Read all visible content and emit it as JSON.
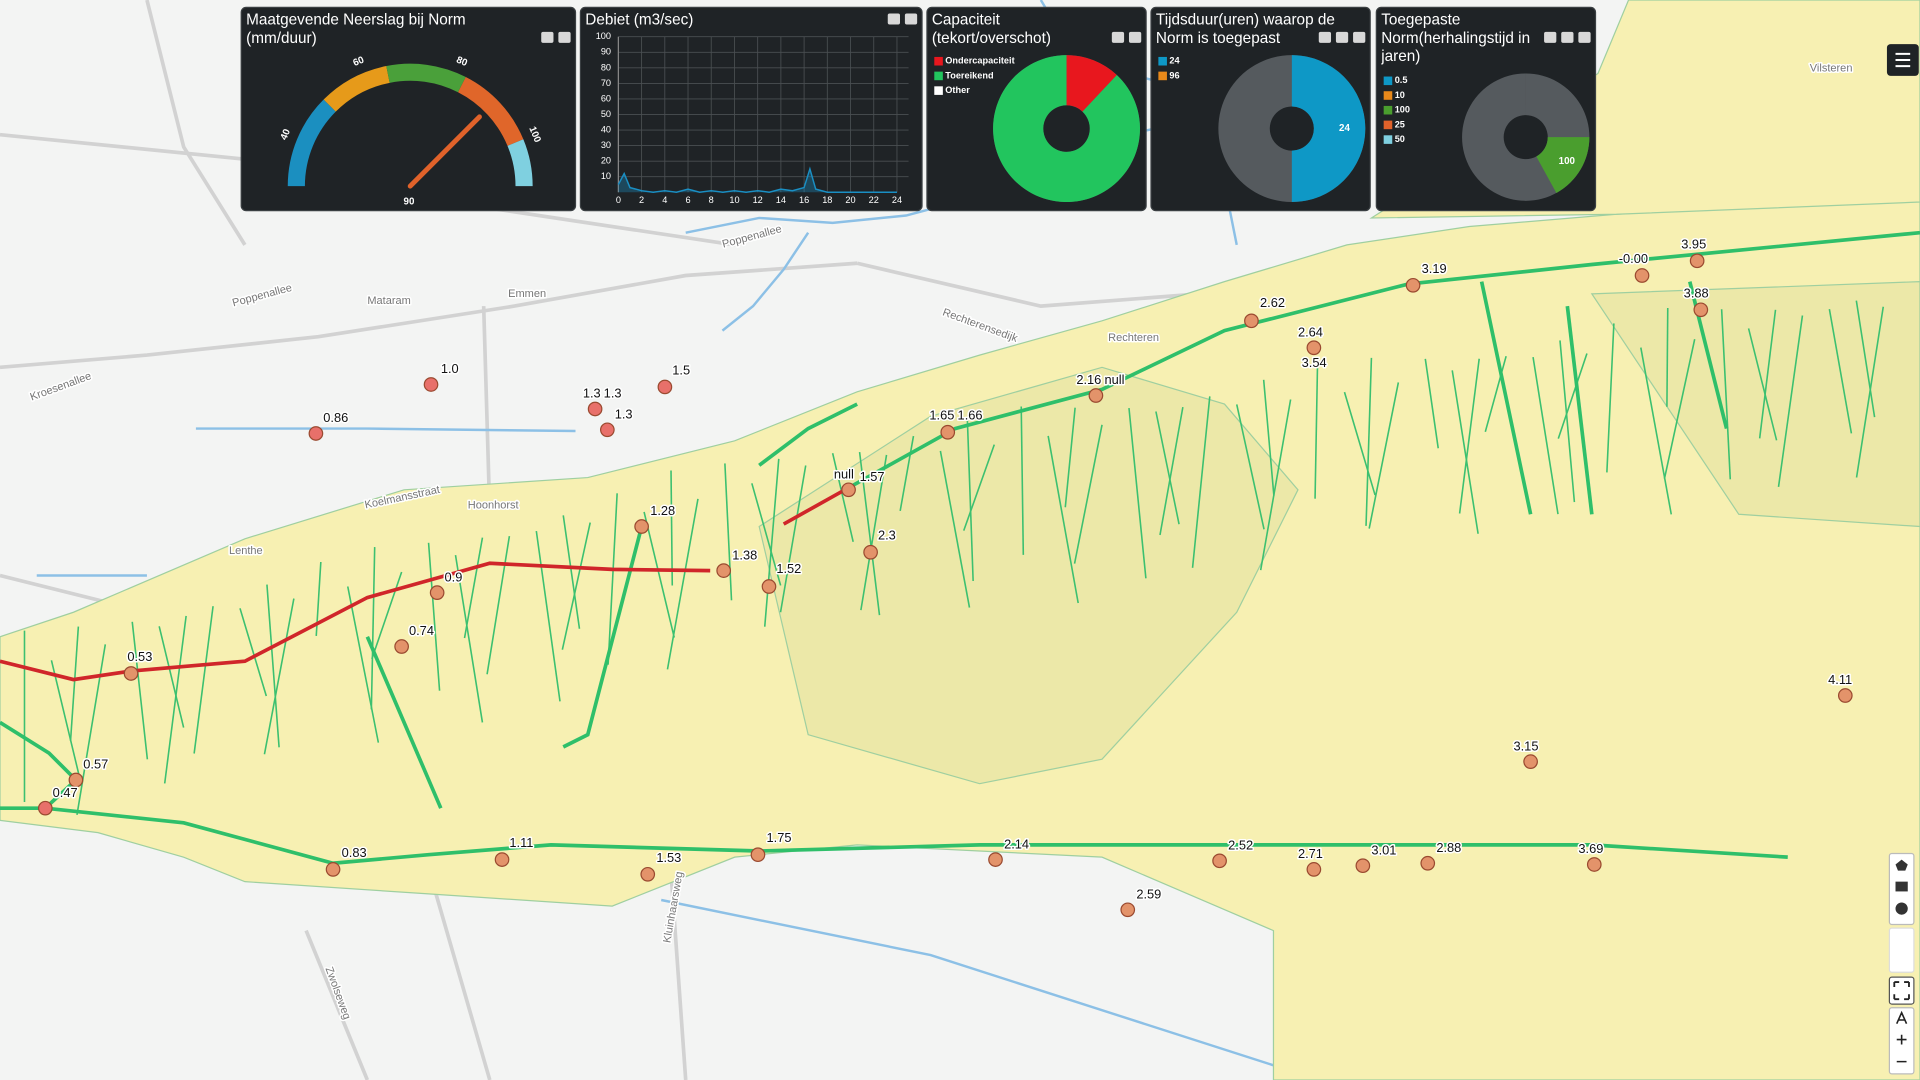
{
  "chart_data": [
    {
      "type": "gauge",
      "title": "Maatgevende Neerslag bij Norm (mm/duur)",
      "value": 90,
      "ylim": [
        30,
        110
      ],
      "yticks": [
        40,
        60,
        80,
        100
      ],
      "bands": [
        {
          "from": 30,
          "to": 50,
          "color": "#1b8fc0"
        },
        {
          "from": 50,
          "to": 65,
          "color": "#e69a1a"
        },
        {
          "from": 65,
          "to": 82,
          "color": "#4aa03a"
        },
        {
          "from": 82,
          "to": 100,
          "color": "#e0662a"
        },
        {
          "from": 100,
          "to": 110,
          "color": "#7fd0e0"
        }
      ],
      "needle_color": "#e0622a"
    },
    {
      "type": "line",
      "title": "Debiet (m3/sec)",
      "x": [
        0,
        0.5,
        1,
        2,
        3,
        4,
        5,
        6,
        7,
        8,
        9,
        10,
        11,
        12,
        13,
        14,
        15,
        16,
        16.5,
        17,
        18,
        19,
        20,
        21,
        22,
        23,
        24
      ],
      "series": [
        {
          "color": "#1a8fc4",
          "values": [
            5,
            12,
            3,
            1,
            0,
            1,
            0,
            2,
            0,
            1,
            0,
            1,
            0,
            1,
            0,
            2,
            1,
            3,
            15,
            2,
            0,
            0,
            0,
            0,
            0,
            0,
            0
          ]
        }
      ],
      "xlim": [
        0,
        25
      ],
      "xticks": [
        0,
        2,
        4,
        6,
        8,
        10,
        12,
        14,
        16,
        18,
        20,
        22,
        24
      ],
      "ylim": [
        0,
        100
      ],
      "yticks": [
        10,
        20,
        30,
        40,
        50,
        60,
        70,
        80,
        90,
        100
      ],
      "grid": true
    },
    {
      "type": "pie",
      "title": "Capaciteit (tekort/overschot)",
      "categories": [
        "Ondercapaciteit",
        "Toereikend",
        "Other"
      ],
      "values": [
        12,
        88,
        0
      ],
      "colors": [
        "#e8171e",
        "#22c55e",
        "#ffffff"
      ],
      "startangle": 0
    },
    {
      "type": "pie",
      "title": "Tijdsduur(uren) waarop de Norm is toegepast",
      "categories": [
        "24",
        "96"
      ],
      "values": [
        50,
        0
      ],
      "colors": [
        "#0e98c6",
        "#e8891a"
      ],
      "startangle": 0,
      "slice_labels": true
    },
    {
      "type": "pie",
      "title": "Toegepaste Norm(herhalingstijd in jaren)",
      "categories": [
        "0.5",
        "10",
        "100",
        "25",
        "50"
      ],
      "values": [
        0,
        0,
        17,
        0,
        0
      ],
      "colors": [
        "#0e98c6",
        "#e8891a",
        "#4a9e2e",
        "#e0622a",
        "#7fd0e0"
      ],
      "startangle": 90,
      "slice_labels": true
    }
  ],
  "map": {
    "nodes": [
      {
        "labels": [
          "1.0"
        ],
        "color": "#e8706a"
      },
      {
        "labels": [
          "0.86"
        ],
        "color": "#e8706a"
      },
      {
        "labels": [
          "1.3",
          "1.3"
        ],
        "color": "#e8706a"
      },
      {
        "labels": [
          "1.3"
        ],
        "color": "#e8706a"
      },
      {
        "labels": [
          "1.5"
        ],
        "color": "#e8706a"
      },
      {
        "labels": [
          "1.28"
        ],
        "color": "#e3936a"
      },
      {
        "labels": [
          "0.9"
        ],
        "color": "#e3936a"
      },
      {
        "labels": [
          "0.74"
        ],
        "color": "#e3936a"
      },
      {
        "labels": [
          "0.53"
        ],
        "color": "#e3936a"
      },
      {
        "labels": [
          "0.57"
        ],
        "color": "#e3936a"
      },
      {
        "labels": [
          "0.47"
        ],
        "color": "#e8706a"
      },
      {
        "labels": [
          "0.83"
        ],
        "color": "#e3936a"
      },
      {
        "labels": [
          "1.11"
        ],
        "color": "#e3936a"
      },
      {
        "labels": [
          "1.53"
        ],
        "color": "#e3936a"
      },
      {
        "labels": [
          "1.75"
        ],
        "color": "#e3936a"
      },
      {
        "labels": [
          "1.38"
        ],
        "color": "#e3936a"
      },
      {
        "labels": [
          "1.52"
        ],
        "color": "#e3936a"
      },
      {
        "labels": [
          "2.3"
        ],
        "color": "#e3936a"
      },
      {
        "labels": [
          "null",
          "1.57"
        ],
        "color": "#e3936a"
      },
      {
        "labels": [
          "1.65",
          "1.66"
        ],
        "color": "#e3936a"
      },
      {
        "labels": [
          "2.16",
          "null"
        ],
        "color": "#e3936a"
      },
      {
        "labels": [
          "2.62"
        ],
        "color": "#e3936a"
      },
      {
        "labels": [
          "2.64",
          "3.54"
        ],
        "color": "#e3936a"
      },
      {
        "labels": [
          "3.19"
        ],
        "color": "#e3936a"
      },
      {
        "labels": [
          "-0.00"
        ],
        "color": "#e3936a"
      },
      {
        "labels": [
          "3.95"
        ],
        "color": "#e3936a"
      },
      {
        "labels": [
          "3.88"
        ],
        "color": "#e3936a"
      },
      {
        "labels": [
          "4.11"
        ],
        "color": "#e3936a"
      },
      {
        "labels": [
          "3.15"
        ],
        "color": "#e3936a"
      },
      {
        "labels": [
          "3.69"
        ],
        "color": "#e3936a"
      },
      {
        "labels": [
          "2.88"
        ],
        "color": "#e3936a"
      },
      {
        "labels": [
          "3.01"
        ],
        "color": "#e3936a"
      },
      {
        "labels": [
          "2.71"
        ],
        "color": "#e3936a"
      },
      {
        "labels": [
          "2.52"
        ],
        "color": "#e3936a"
      },
      {
        "labels": [
          "2.14"
        ],
        "color": "#e3936a"
      },
      {
        "labels": [
          "2.59"
        ],
        "color": "#e3936a"
      }
    ],
    "places": [
      "Poppenallee",
      "Poppenallee",
      "Mataram",
      "Emmen",
      "Kroesenallee",
      "Koelmansstraat",
      "Hoonhorst",
      "Lenthe",
      "Rechteren",
      "Rechterensedijk",
      "Zwolseweg",
      "Kluinhaarsweg",
      "Vilsteren"
    ]
  }
}
